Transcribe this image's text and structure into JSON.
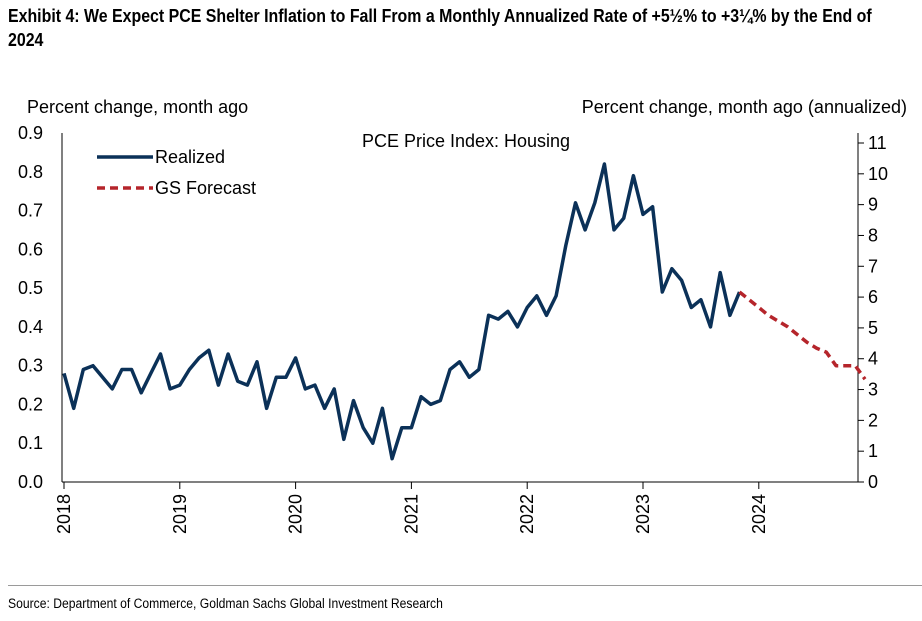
{
  "header": {
    "title": "Exhibit 4: We Expect PCE Shelter Inflation to Fall From a Monthly Annualized Rate of +5½% to +3¼% by the End of 2024"
  },
  "footer": {
    "source": "Source: Department of Commerce, Goldman Sachs Global Investment Research"
  },
  "chart_data": {
    "type": "line",
    "title": "PCE Price Index: Housing",
    "ylabel_left": "Percent change, month ago",
    "ylabel_right": "Percent change, month ago (annualized)",
    "xlabel": "",
    "ylim_left": [
      0,
      0.9
    ],
    "ylim_right": [
      0,
      11
    ],
    "yticks_left": [
      "0.0",
      "0.1",
      "0.2",
      "0.3",
      "0.4",
      "0.5",
      "0.6",
      "0.7",
      "0.8",
      "0.9"
    ],
    "yticks_right": [
      "0",
      "1",
      "2",
      "3",
      "4",
      "5",
      "6",
      "7",
      "8",
      "9",
      "10",
      "11"
    ],
    "xticks": [
      "2018",
      "2019",
      "2020",
      "2021",
      "2022",
      "2023",
      "2024"
    ],
    "legend_position": "top-left",
    "colors": {
      "realized": "#0b3158",
      "forecast": "#b5252b"
    },
    "series": [
      {
        "name": "Realized",
        "style": "solid",
        "x": [
          "2018-01",
          "2018-02",
          "2018-03",
          "2018-04",
          "2018-05",
          "2018-06",
          "2018-07",
          "2018-08",
          "2018-09",
          "2018-10",
          "2018-11",
          "2018-12",
          "2019-01",
          "2019-02",
          "2019-03",
          "2019-04",
          "2019-05",
          "2019-06",
          "2019-07",
          "2019-08",
          "2019-09",
          "2019-10",
          "2019-11",
          "2019-12",
          "2020-01",
          "2020-02",
          "2020-03",
          "2020-04",
          "2020-05",
          "2020-06",
          "2020-07",
          "2020-08",
          "2020-09",
          "2020-10",
          "2020-11",
          "2020-12",
          "2021-01",
          "2021-02",
          "2021-03",
          "2021-04",
          "2021-05",
          "2021-06",
          "2021-07",
          "2021-08",
          "2021-09",
          "2021-10",
          "2021-11",
          "2021-12",
          "2022-01",
          "2022-02",
          "2022-03",
          "2022-04",
          "2022-05",
          "2022-06",
          "2022-07",
          "2022-08",
          "2022-09",
          "2022-10",
          "2022-11",
          "2022-12",
          "2023-01",
          "2023-02",
          "2023-03",
          "2023-04",
          "2023-05",
          "2023-06",
          "2023-07",
          "2023-08",
          "2023-09",
          "2023-10",
          "2023-11"
        ],
        "values": [
          0.28,
          0.19,
          0.29,
          0.3,
          0.27,
          0.24,
          0.29,
          0.29,
          0.23,
          0.28,
          0.33,
          0.24,
          0.25,
          0.29,
          0.32,
          0.34,
          0.25,
          0.33,
          0.26,
          0.25,
          0.31,
          0.19,
          0.27,
          0.27,
          0.32,
          0.24,
          0.25,
          0.19,
          0.24,
          0.11,
          0.21,
          0.14,
          0.1,
          0.19,
          0.06,
          0.14,
          0.14,
          0.22,
          0.2,
          0.21,
          0.29,
          0.31,
          0.27,
          0.29,
          0.43,
          0.42,
          0.44,
          0.4,
          0.45,
          0.48,
          0.43,
          0.48,
          0.61,
          0.72,
          0.65,
          0.72,
          0.82,
          0.65,
          0.68,
          0.79,
          0.69,
          0.71,
          0.49,
          0.55,
          0.52,
          0.45,
          0.47,
          0.4,
          0.54,
          0.43,
          0.49
        ]
      },
      {
        "name": "GS Forecast",
        "style": "dashed",
        "x": [
          "2023-11",
          "2023-12",
          "2024-01",
          "2024-02",
          "2024-03",
          "2024-04",
          "2024-05",
          "2024-06",
          "2024-07",
          "2024-08",
          "2024-09",
          "2024-10",
          "2024-11",
          "2024-12"
        ],
        "values": [
          0.49,
          0.47,
          0.45,
          0.43,
          0.415,
          0.4,
          0.38,
          0.36,
          0.345,
          0.335,
          0.3,
          0.3,
          0.3,
          0.265
        ]
      }
    ]
  }
}
